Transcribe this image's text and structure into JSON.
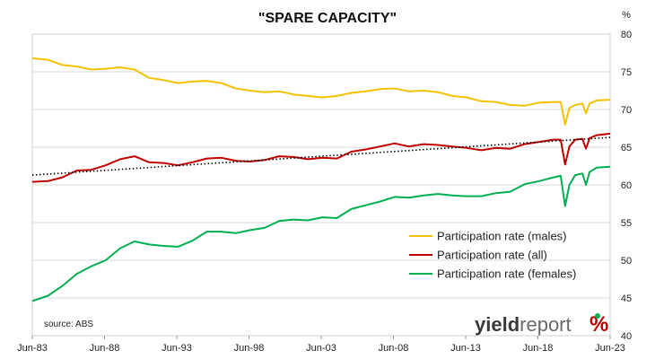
{
  "chart_data": {
    "type": "line",
    "title": "\"SPARE CAPACITY\"",
    "ylabel": "%",
    "ylim": [
      40,
      80
    ],
    "yticks": [
      40,
      45,
      50,
      55,
      60,
      65,
      70,
      75,
      80
    ],
    "x_range": [
      1983.42,
      2023.42
    ],
    "xticks": [
      {
        "label": "Jun-83",
        "value": 1983.42
      },
      {
        "label": "Jun-88",
        "value": 1988.42
      },
      {
        "label": "Jun-93",
        "value": 1993.42
      },
      {
        "label": "Jun-98",
        "value": 1998.42
      },
      {
        "label": "Jun-03",
        "value": 2003.42
      },
      {
        "label": "Jun-08",
        "value": 2008.42
      },
      {
        "label": "Jun-13",
        "value": 2013.42
      },
      {
        "label": "Jun-18",
        "value": 2018.42
      },
      {
        "label": "Jun-23",
        "value": 2023.42
      }
    ],
    "grid": "horizontal",
    "legend_position": "lower-right",
    "series": [
      {
        "name": "Participation rate (males)",
        "color": "#f2c200",
        "points": [
          [
            1983.42,
            76.8
          ],
          [
            1984.5,
            76.6
          ],
          [
            1985.5,
            75.9
          ],
          [
            1986.5,
            75.7
          ],
          [
            1987.5,
            75.3
          ],
          [
            1988.5,
            75.4
          ],
          [
            1989.5,
            75.6
          ],
          [
            1990.5,
            75.3
          ],
          [
            1991.5,
            74.2
          ],
          [
            1992.5,
            73.9
          ],
          [
            1993.5,
            73.5
          ],
          [
            1994.5,
            73.7
          ],
          [
            1995.5,
            73.8
          ],
          [
            1996.5,
            73.5
          ],
          [
            1997.5,
            72.8
          ],
          [
            1998.5,
            72.5
          ],
          [
            1999.5,
            72.3
          ],
          [
            2000.5,
            72.4
          ],
          [
            2001.5,
            72.0
          ],
          [
            2002.5,
            71.8
          ],
          [
            2003.5,
            71.6
          ],
          [
            2004.5,
            71.8
          ],
          [
            2005.5,
            72.2
          ],
          [
            2006.5,
            72.4
          ],
          [
            2007.5,
            72.7
          ],
          [
            2008.5,
            72.8
          ],
          [
            2009.5,
            72.4
          ],
          [
            2010.5,
            72.5
          ],
          [
            2011.5,
            72.3
          ],
          [
            2012.5,
            71.8
          ],
          [
            2013.5,
            71.6
          ],
          [
            2014.5,
            71.1
          ],
          [
            2015.5,
            71.0
          ],
          [
            2016.5,
            70.6
          ],
          [
            2017.5,
            70.5
          ],
          [
            2018.5,
            70.9
          ],
          [
            2019.5,
            71.0
          ],
          [
            2020.0,
            71.0
          ],
          [
            2020.3,
            68.0
          ],
          [
            2020.6,
            70.2
          ],
          [
            2021.0,
            70.6
          ],
          [
            2021.5,
            70.8
          ],
          [
            2021.75,
            69.5
          ],
          [
            2022.0,
            70.8
          ],
          [
            2022.5,
            71.2
          ],
          [
            2023.42,
            71.3
          ]
        ]
      },
      {
        "name": "Participation rate (all)",
        "color": "#c00000",
        "points": [
          [
            1983.42,
            60.4
          ],
          [
            1984.5,
            60.5
          ],
          [
            1985.5,
            61.0
          ],
          [
            1986.5,
            61.9
          ],
          [
            1987.5,
            62.0
          ],
          [
            1988.5,
            62.6
          ],
          [
            1989.5,
            63.4
          ],
          [
            1990.5,
            63.8
          ],
          [
            1991.5,
            63.0
          ],
          [
            1992.5,
            62.9
          ],
          [
            1993.5,
            62.6
          ],
          [
            1994.5,
            63.0
          ],
          [
            1995.5,
            63.5
          ],
          [
            1996.5,
            63.6
          ],
          [
            1997.5,
            63.2
          ],
          [
            1998.5,
            63.1
          ],
          [
            1999.5,
            63.3
          ],
          [
            2000.5,
            63.8
          ],
          [
            2001.5,
            63.7
          ],
          [
            2002.5,
            63.4
          ],
          [
            2003.5,
            63.6
          ],
          [
            2004.5,
            63.5
          ],
          [
            2005.5,
            64.4
          ],
          [
            2006.5,
            64.7
          ],
          [
            2007.5,
            65.1
          ],
          [
            2008.5,
            65.5
          ],
          [
            2009.5,
            65.1
          ],
          [
            2010.5,
            65.4
          ],
          [
            2011.5,
            65.3
          ],
          [
            2012.5,
            65.1
          ],
          [
            2013.5,
            64.9
          ],
          [
            2014.5,
            64.6
          ],
          [
            2015.5,
            64.9
          ],
          [
            2016.5,
            64.8
          ],
          [
            2017.5,
            65.4
          ],
          [
            2018.5,
            65.7
          ],
          [
            2019.5,
            66.0
          ],
          [
            2020.0,
            66.0
          ],
          [
            2020.3,
            62.7
          ],
          [
            2020.6,
            65.1
          ],
          [
            2021.0,
            66.0
          ],
          [
            2021.5,
            66.1
          ],
          [
            2021.75,
            64.8
          ],
          [
            2022.0,
            66.2
          ],
          [
            2022.5,
            66.6
          ],
          [
            2023.42,
            66.8
          ]
        ]
      },
      {
        "name": "Participation rate (females)",
        "color": "#00b050",
        "points": [
          [
            1983.42,
            44.6
          ],
          [
            1984.5,
            45.3
          ],
          [
            1985.5,
            46.6
          ],
          [
            1986.5,
            48.2
          ],
          [
            1987.5,
            49.2
          ],
          [
            1988.5,
            50.0
          ],
          [
            1989.5,
            51.6
          ],
          [
            1990.5,
            52.5
          ],
          [
            1991.5,
            52.1
          ],
          [
            1992.5,
            51.9
          ],
          [
            1993.5,
            51.8
          ],
          [
            1994.5,
            52.6
          ],
          [
            1995.5,
            53.8
          ],
          [
            1996.5,
            53.8
          ],
          [
            1997.5,
            53.6
          ],
          [
            1998.5,
            54.0
          ],
          [
            1999.5,
            54.3
          ],
          [
            2000.5,
            55.2
          ],
          [
            2001.5,
            55.4
          ],
          [
            2002.5,
            55.3
          ],
          [
            2003.5,
            55.7
          ],
          [
            2004.5,
            55.6
          ],
          [
            2005.5,
            56.8
          ],
          [
            2006.5,
            57.3
          ],
          [
            2007.5,
            57.8
          ],
          [
            2008.5,
            58.4
          ],
          [
            2009.5,
            58.3
          ],
          [
            2010.5,
            58.6
          ],
          [
            2011.5,
            58.8
          ],
          [
            2012.5,
            58.6
          ],
          [
            2013.5,
            58.5
          ],
          [
            2014.5,
            58.5
          ],
          [
            2015.5,
            58.9
          ],
          [
            2016.5,
            59.1
          ],
          [
            2017.5,
            60.1
          ],
          [
            2018.5,
            60.5
          ],
          [
            2019.5,
            61.0
          ],
          [
            2020.0,
            61.2
          ],
          [
            2020.3,
            57.2
          ],
          [
            2020.6,
            60.0
          ],
          [
            2021.0,
            61.3
          ],
          [
            2021.5,
            61.5
          ],
          [
            2021.75,
            60.0
          ],
          [
            2022.0,
            61.7
          ],
          [
            2022.5,
            62.3
          ],
          [
            2023.42,
            62.4
          ]
        ]
      },
      {
        "role": "trendline",
        "color": "#000000",
        "style": "dotted",
        "points": [
          [
            1983.42,
            61.3
          ],
          [
            2023.42,
            66.3
          ]
        ]
      }
    ],
    "annotations": [
      "source: ABS"
    ],
    "logo": "yieldreport %"
  }
}
